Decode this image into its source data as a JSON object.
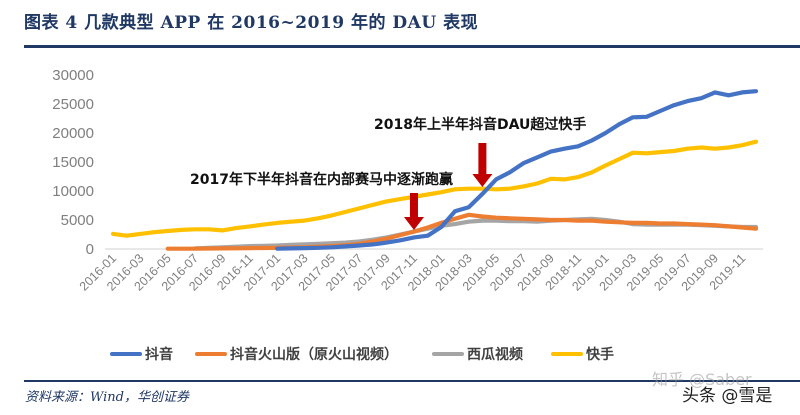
{
  "figure": {
    "title": "图表 4    几款典型 APP 在 2016~2019 年的 DAU 表现",
    "source": "资料来源：Wind，华创证券",
    "watermarks": [
      "知乎 @Saber",
      "头条 @雪是"
    ]
  },
  "chart_data": {
    "type": "line",
    "title": "几款典型 APP 在 2016~2019 年的 DAU 表现",
    "xlabel": "",
    "ylabel": "",
    "ylim": [
      0,
      30000
    ],
    "yticks": [
      0,
      5000,
      10000,
      15000,
      20000,
      25000,
      30000
    ],
    "grid": false,
    "legend_position": "bottom",
    "x": [
      "2016-01",
      "2016-02",
      "2016-03",
      "2016-04",
      "2016-05",
      "2016-06",
      "2016-07",
      "2016-08",
      "2016-09",
      "2016-10",
      "2016-11",
      "2016-12",
      "2017-01",
      "2017-02",
      "2017-03",
      "2017-04",
      "2017-05",
      "2017-06",
      "2017-07",
      "2017-08",
      "2017-09",
      "2017-10",
      "2017-11",
      "2017-12",
      "2018-01",
      "2018-02",
      "2018-03",
      "2018-04",
      "2018-05",
      "2018-06",
      "2018-07",
      "2018-08",
      "2018-09",
      "2018-10",
      "2018-11",
      "2018-12",
      "2019-01",
      "2019-02",
      "2019-03",
      "2019-04",
      "2019-05",
      "2019-06",
      "2019-07",
      "2019-08",
      "2019-09",
      "2019-10",
      "2019-11",
      "2019-12"
    ],
    "xtick_labels": [
      "2016-01",
      "2016-03",
      "2016-05",
      "2016-07",
      "2016-09",
      "2016-11",
      "2017-01",
      "2017-03",
      "2017-05",
      "2017-07",
      "2017-09",
      "2017-11",
      "2018-01",
      "2018-03",
      "2018-05",
      "2018-07",
      "2018-09",
      "2018-11",
      "2019-01",
      "2019-03",
      "2019-05",
      "2019-07",
      "2019-09",
      "2019-11"
    ],
    "series": [
      {
        "name": "抖音",
        "color": "#4472c4",
        "values": [
          null,
          null,
          null,
          null,
          null,
          null,
          null,
          null,
          null,
          null,
          null,
          null,
          50,
          100,
          150,
          200,
          300,
          450,
          600,
          800,
          1100,
          1500,
          2000,
          2300,
          3800,
          6500,
          7200,
          9500,
          12000,
          13200,
          14800,
          15800,
          16800,
          17300,
          17700,
          18700,
          20000,
          21500,
          22700,
          22800,
          23800,
          24800,
          25500,
          26000,
          27000,
          26500,
          27000,
          27200
        ]
      },
      {
        "name": "抖音火山版（原火山视频）",
        "color": "#ed7d31",
        "values": [
          null,
          null,
          null,
          null,
          50,
          50,
          50,
          80,
          100,
          120,
          150,
          180,
          200,
          250,
          300,
          400,
          500,
          650,
          900,
          1300,
          1800,
          2400,
          3000,
          3700,
          4500,
          5200,
          5900,
          5600,
          5400,
          5300,
          5200,
          5100,
          5000,
          5000,
          4900,
          4900,
          4700,
          4600,
          4500,
          4500,
          4400,
          4400,
          4300,
          4200,
          4100,
          3900,
          3700,
          3500
        ]
      },
      {
        "name": "西瓜视频",
        "color": "#a5a5a5",
        "values": [
          null,
          null,
          null,
          null,
          null,
          null,
          100,
          200,
          300,
          400,
          500,
          550,
          600,
          700,
          800,
          900,
          1000,
          1100,
          1300,
          1600,
          2000,
          2500,
          3000,
          3500,
          4000,
          4300,
          4700,
          4900,
          4900,
          4800,
          4800,
          4700,
          4900,
          5000,
          5100,
          5200,
          5000,
          4700,
          4300,
          4200,
          4200,
          4200,
          4200,
          4100,
          4000,
          3900,
          3800,
          3800
        ]
      },
      {
        "name": "快手",
        "color": "#ffc000",
        "values": [
          2600,
          2300,
          2600,
          2900,
          3100,
          3300,
          3400,
          3400,
          3200,
          3600,
          3900,
          4200,
          4500,
          4700,
          4900,
          5300,
          5800,
          6400,
          7000,
          7600,
          8200,
          8600,
          9000,
          9400,
          9800,
          10300,
          10400,
          10400,
          10300,
          10400,
          10800,
          11300,
          12100,
          12000,
          12400,
          13200,
          14400,
          15500,
          16600,
          16500,
          16700,
          16900,
          17300,
          17500,
          17300,
          17500,
          17900,
          18500
        ]
      }
    ],
    "annotations": [
      {
        "text": "2017年下半年抖音在内部赛马中逐渐跑赢",
        "arrow_at": "2017-11"
      },
      {
        "text": "2018年上半年抖音DAU超过快手",
        "arrow_at": "2018-04"
      }
    ]
  }
}
